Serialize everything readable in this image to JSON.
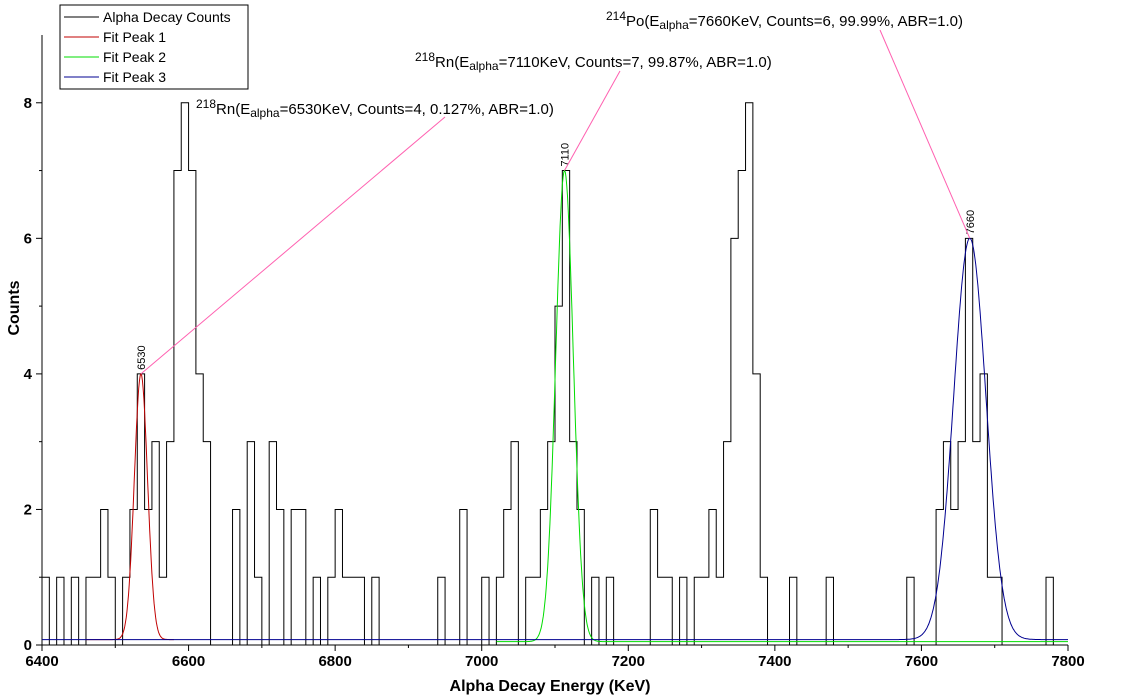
{
  "chart_data": {
    "type": "line",
    "xlabel": "Alpha Decay Energy (KeV)",
    "ylabel": "Counts",
    "xlim": [
      6400,
      7800
    ],
    "ylim": [
      0,
      9
    ],
    "xticks": [
      6400,
      6600,
      6800,
      7000,
      7200,
      7400,
      7600,
      7800
    ],
    "yticks": [
      0,
      2,
      4,
      6,
      8
    ],
    "grid": false,
    "legend_position": "top-left",
    "bin_width": 10,
    "histogram": {
      "name": "Alpha Decay Counts",
      "color": "#000000",
      "bins": [
        {
          "x": 6405,
          "y": 1
        },
        {
          "x": 6425,
          "y": 1
        },
        {
          "x": 6445,
          "y": 1
        },
        {
          "x": 6465,
          "y": 1
        },
        {
          "x": 6475,
          "y": 1
        },
        {
          "x": 6485,
          "y": 2
        },
        {
          "x": 6495,
          "y": 1
        },
        {
          "x": 6515,
          "y": 1
        },
        {
          "x": 6525,
          "y": 2
        },
        {
          "x": 6535,
          "y": 4
        },
        {
          "x": 6545,
          "y": 2
        },
        {
          "x": 6555,
          "y": 3
        },
        {
          "x": 6565,
          "y": 1
        },
        {
          "x": 6575,
          "y": 3
        },
        {
          "x": 6585,
          "y": 7
        },
        {
          "x": 6595,
          "y": 8
        },
        {
          "x": 6605,
          "y": 7
        },
        {
          "x": 6615,
          "y": 4
        },
        {
          "x": 6625,
          "y": 3
        },
        {
          "x": 6665,
          "y": 2
        },
        {
          "x": 6685,
          "y": 3
        },
        {
          "x": 6695,
          "y": 1
        },
        {
          "x": 6715,
          "y": 3
        },
        {
          "x": 6725,
          "y": 2
        },
        {
          "x": 6745,
          "y": 2
        },
        {
          "x": 6755,
          "y": 2
        },
        {
          "x": 6775,
          "y": 1
        },
        {
          "x": 6795,
          "y": 1
        },
        {
          "x": 6805,
          "y": 2
        },
        {
          "x": 6815,
          "y": 1
        },
        {
          "x": 6825,
          "y": 1
        },
        {
          "x": 6835,
          "y": 1
        },
        {
          "x": 6855,
          "y": 1
        },
        {
          "x": 6945,
          "y": 1
        },
        {
          "x": 6975,
          "y": 2
        },
        {
          "x": 7005,
          "y": 1
        },
        {
          "x": 7025,
          "y": 1
        },
        {
          "x": 7035,
          "y": 2
        },
        {
          "x": 7045,
          "y": 3
        },
        {
          "x": 7065,
          "y": 1
        },
        {
          "x": 7075,
          "y": 1
        },
        {
          "x": 7085,
          "y": 2
        },
        {
          "x": 7095,
          "y": 3
        },
        {
          "x": 7105,
          "y": 5
        },
        {
          "x": 7115,
          "y": 7
        },
        {
          "x": 7125,
          "y": 3
        },
        {
          "x": 7135,
          "y": 2
        },
        {
          "x": 7155,
          "y": 1
        },
        {
          "x": 7175,
          "y": 1
        },
        {
          "x": 7235,
          "y": 2
        },
        {
          "x": 7245,
          "y": 1
        },
        {
          "x": 7255,
          "y": 1
        },
        {
          "x": 7275,
          "y": 1
        },
        {
          "x": 7295,
          "y": 1
        },
        {
          "x": 7305,
          "y": 1
        },
        {
          "x": 7315,
          "y": 2
        },
        {
          "x": 7325,
          "y": 1
        },
        {
          "x": 7335,
          "y": 3
        },
        {
          "x": 7345,
          "y": 6
        },
        {
          "x": 7355,
          "y": 7
        },
        {
          "x": 7365,
          "y": 8
        },
        {
          "x": 7375,
          "y": 4
        },
        {
          "x": 7385,
          "y": 1
        },
        {
          "x": 7425,
          "y": 1
        },
        {
          "x": 7475,
          "y": 1
        },
        {
          "x": 7585,
          "y": 1
        },
        {
          "x": 7625,
          "y": 2
        },
        {
          "x": 7635,
          "y": 3
        },
        {
          "x": 7645,
          "y": 2
        },
        {
          "x": 7655,
          "y": 3
        },
        {
          "x": 7665,
          "y": 6
        },
        {
          "x": 7675,
          "y": 3
        },
        {
          "x": 7685,
          "y": 4
        },
        {
          "x": 7695,
          "y": 1
        },
        {
          "x": 7705,
          "y": 1
        },
        {
          "x": 7775,
          "y": 1
        }
      ]
    },
    "fits": [
      {
        "name": "Fit Peak 1",
        "color": "#c00000",
        "center": 6535,
        "amplitude": 4,
        "sigma": 9,
        "baseline": 0.08,
        "range": [
          6460,
          6580
        ]
      },
      {
        "name": "Fit Peak 2",
        "color": "#00dd00",
        "center": 7113,
        "amplitude": 7,
        "sigma": 12,
        "baseline": 0.05,
        "range": [
          7020,
          7800
        ]
      },
      {
        "name": "Fit Peak 3",
        "color": "#000090",
        "center": 7666,
        "amplitude": 6,
        "sigma": 22,
        "baseline": 0.08,
        "range": [
          6400,
          7800
        ]
      }
    ],
    "peak_labels": [
      {
        "x": 6535,
        "y": 4,
        "text": "6530"
      },
      {
        "x": 7113,
        "y": 7,
        "text": "7110"
      },
      {
        "x": 7666,
        "y": 6,
        "text": "7660"
      }
    ],
    "annotations": [
      {
        "mass": "218",
        "element": "Rn(E",
        "sub": "alpha",
        "rest": "=6530KeV, Counts=4, 0.127%, ABR=1.0)",
        "target": {
          "x": 6535,
          "y": 4
        }
      },
      {
        "mass": "218",
        "element": "Rn(E",
        "sub": "alpha",
        "rest": "=7110KeV, Counts=7, 99.87%, ABR=1.0)",
        "target": {
          "x": 7113,
          "y": 7
        }
      },
      {
        "mass": "214",
        "element": "Po(E",
        "sub": "alpha",
        "rest": "=7660KeV, Counts=6, 99.99%, ABR=1.0)",
        "target": {
          "x": 7666,
          "y": 6
        }
      }
    ],
    "legend": [
      "Alpha Decay Counts",
      "Fit Peak 1",
      "Fit Peak 2",
      "Fit Peak 3"
    ],
    "annotation_line_color": "#ff60b0"
  }
}
